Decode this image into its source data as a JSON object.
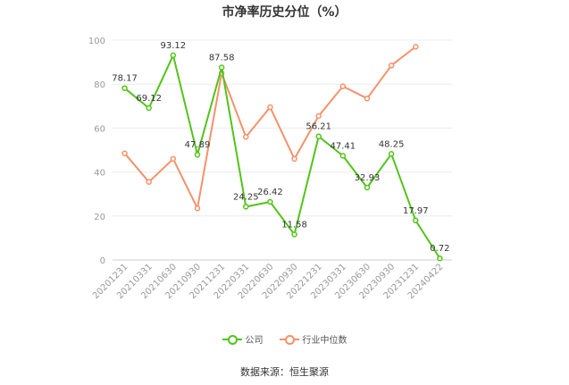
{
  "chart_data": {
    "type": "line",
    "title": "市净率历史分位（%）",
    "categories": [
      "20201231",
      "20210331",
      "20210630",
      "20210930",
      "20211231",
      "20220331",
      "20220630",
      "20220930",
      "20221231",
      "20230331",
      "20230630",
      "20230930",
      "20231231",
      "20240422"
    ],
    "series": [
      {
        "name": "公司",
        "color": "#52c41a",
        "values": [
          78.17,
          69.12,
          93.12,
          47.89,
          87.58,
          24.25,
          26.42,
          11.58,
          56.21,
          47.41,
          32.93,
          48.25,
          17.97,
          0.72
        ],
        "labels": [
          "78.17",
          "69.12",
          "93.12",
          "47.89",
          "87.58",
          "24.25",
          "26.42",
          "11.58",
          "56.21",
          "47.41",
          "32.93",
          "48.25",
          "17.97",
          "0.72"
        ]
      },
      {
        "name": "行业中位数",
        "color": "#f4926a",
        "values": [
          48.5,
          35.5,
          46,
          23.5,
          85,
          56,
          69.5,
          46,
          65.5,
          79,
          73.5,
          88.5,
          97,
          null
        ]
      }
    ],
    "ylim": [
      0,
      100
    ],
    "yticks": [
      0,
      20,
      40,
      60,
      80,
      100
    ],
    "grid": true,
    "legend_position": "bottom"
  },
  "source": "数据来源：恒生聚源"
}
